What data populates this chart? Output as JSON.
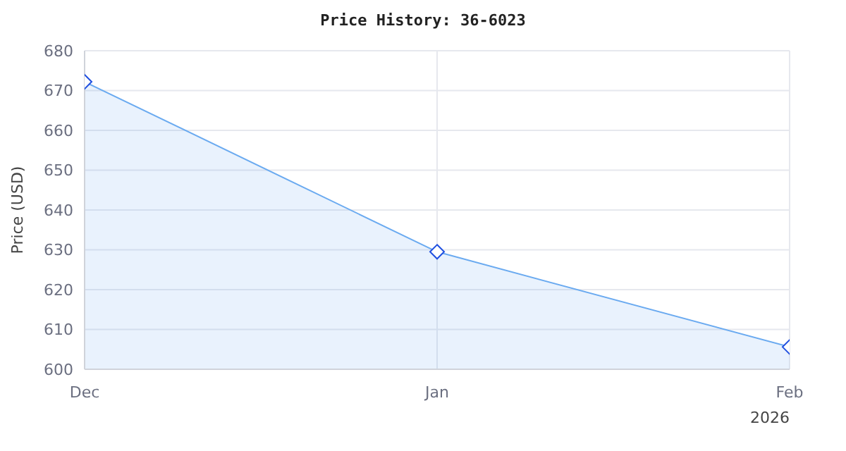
{
  "chart_data": {
    "type": "area",
    "title": "Price History: 36-6023",
    "ylabel": "Price (USD)",
    "x": [
      "2025-12-01",
      "2026-01-01",
      "2026-02-01"
    ],
    "series": [
      {
        "color": "#6aaaf0",
        "values": [
          672.2,
          629.5,
          605.6
        ]
      }
    ],
    "xlim": [
      "2025-12-01",
      "2026-02-01"
    ],
    "xticks": [
      {
        "value": "2025-12-01",
        "label": "Dec"
      },
      {
        "value": "2026-01-01",
        "label": "Jan"
      },
      {
        "value": "2026-02-01",
        "label": "Feb\n2026"
      }
    ],
    "ylim": [
      600,
      680
    ],
    "yticks": [
      600,
      610,
      620,
      630,
      640,
      650,
      660,
      670,
      680
    ],
    "grid": true,
    "marker": "diamond",
    "line_style": "solid",
    "legend": false
  }
}
